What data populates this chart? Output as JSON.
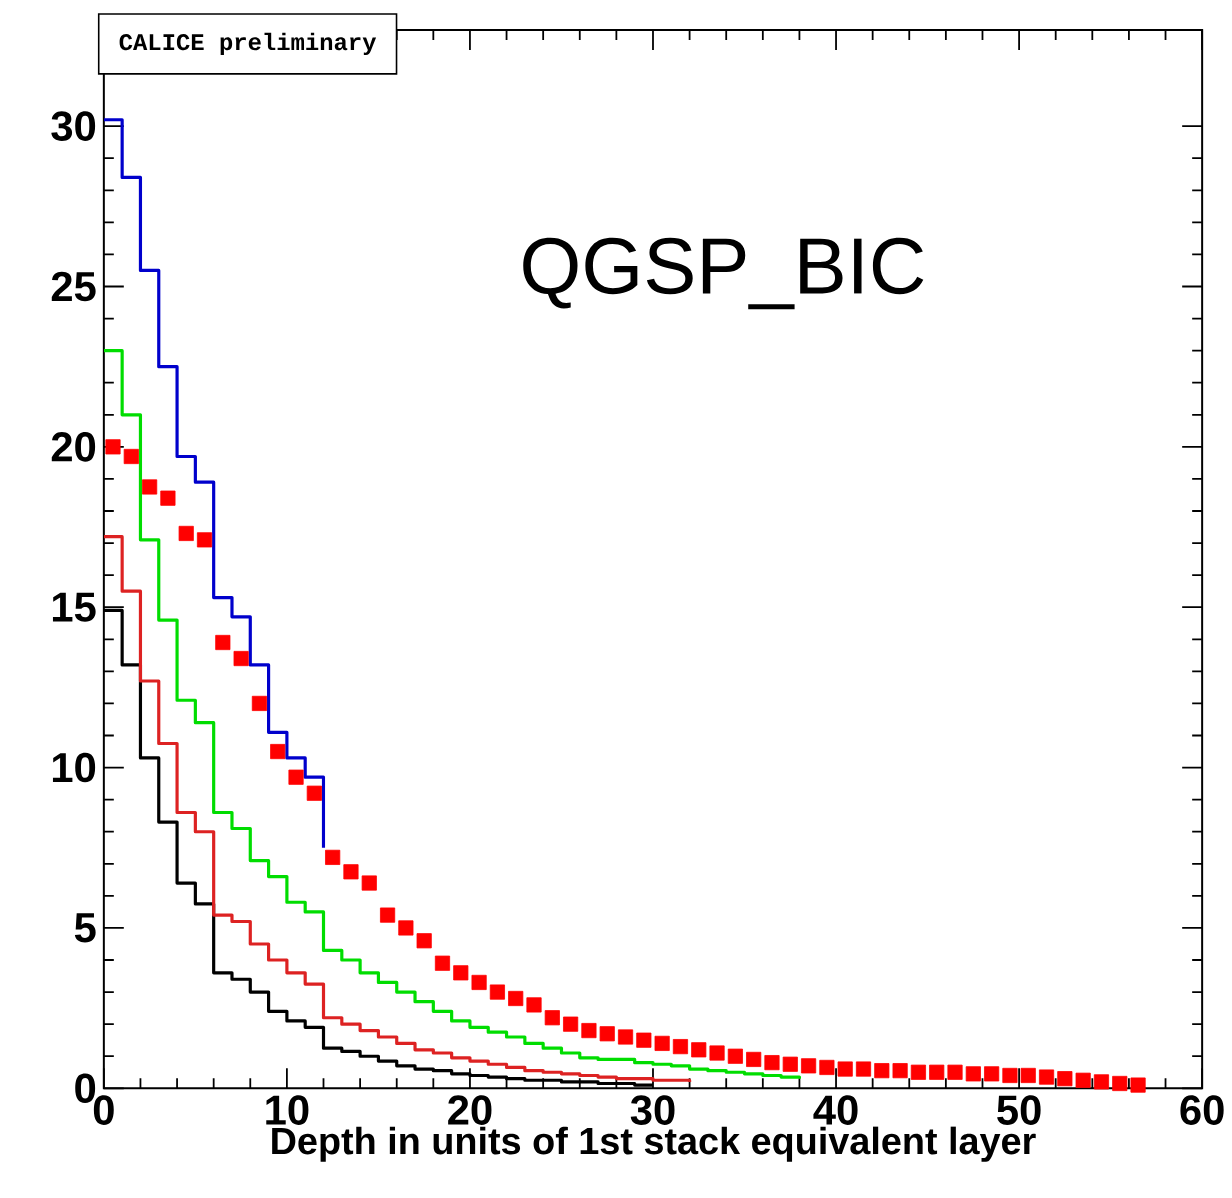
{
  "chart_data": {
    "type": "step",
    "xlabel": "Depth in units of 1st stack equivalent layer",
    "annotations": [
      "CALICE preliminary",
      "QGSP_BIC"
    ],
    "xlim": [
      0,
      60
    ],
    "ylim": [
      0,
      33
    ],
    "xticks": [
      0,
      10,
      20,
      30,
      40,
      50,
      60
    ],
    "yticks": [
      0,
      5,
      10,
      15,
      20,
      25,
      30
    ],
    "grid": false,
    "series": [
      {
        "color": "#000000",
        "x": [
          0,
          1,
          2,
          3,
          4,
          5,
          6,
          7,
          8,
          9,
          10,
          11,
          12,
          13,
          14,
          15,
          16,
          17,
          18,
          19,
          20,
          21,
          22,
          23,
          24,
          25,
          26,
          27,
          28,
          29,
          30
        ],
        "values": [
          14.9,
          13.2,
          10.3,
          8.3,
          6.4,
          5.75,
          3.6,
          3.4,
          3.0,
          2.4,
          2.1,
          1.9,
          1.25,
          1.15,
          1.0,
          0.85,
          0.7,
          0.6,
          0.55,
          0.45,
          0.4,
          0.35,
          0.3,
          0.25,
          0.25,
          0.2,
          0.2,
          0.15,
          0.15,
          0.1,
          0.1
        ]
      },
      {
        "color": "#dd2222",
        "x": [
          0,
          1,
          2,
          3,
          4,
          5,
          6,
          7,
          8,
          9,
          10,
          11,
          12,
          13,
          14,
          15,
          16,
          17,
          18,
          19,
          20,
          21,
          22,
          23,
          24,
          25,
          26,
          27,
          28,
          29,
          30,
          31,
          32
        ],
        "values": [
          17.2,
          15.5,
          12.7,
          10.75,
          8.6,
          8.0,
          5.4,
          5.2,
          4.5,
          4.0,
          3.6,
          3.25,
          2.2,
          2.0,
          1.8,
          1.6,
          1.4,
          1.2,
          1.1,
          0.95,
          0.85,
          0.75,
          0.65,
          0.55,
          0.5,
          0.45,
          0.4,
          0.35,
          0.3,
          0.3,
          0.25,
          0.25,
          0.2
        ]
      },
      {
        "color": "#00dd00",
        "x": [
          0,
          1,
          2,
          3,
          4,
          5,
          6,
          7,
          8,
          9,
          10,
          11,
          12,
          13,
          14,
          15,
          16,
          17,
          18,
          19,
          20,
          21,
          22,
          23,
          24,
          25,
          26,
          27,
          28,
          29,
          30,
          31,
          32,
          33,
          34,
          35,
          36,
          37,
          38
        ],
        "values": [
          23.0,
          21.0,
          17.1,
          14.6,
          12.1,
          11.4,
          8.6,
          8.1,
          7.1,
          6.6,
          5.8,
          5.5,
          4.3,
          4.0,
          3.6,
          3.3,
          3.0,
          2.7,
          2.4,
          2.1,
          1.9,
          1.75,
          1.6,
          1.4,
          1.25,
          1.1,
          0.95,
          0.9,
          0.9,
          0.8,
          0.75,
          0.7,
          0.6,
          0.55,
          0.5,
          0.45,
          0.4,
          0.35,
          0.3
        ]
      },
      {
        "color": "#0000cc",
        "x": [
          0,
          1,
          2,
          3,
          4,
          5,
          6,
          7,
          8,
          9,
          10,
          11,
          12
        ],
        "values": [
          30.2,
          28.4,
          25.5,
          22.5,
          19.7,
          18.9,
          15.3,
          14.7,
          13.2,
          11.1,
          10.3,
          9.7,
          7.5
        ]
      },
      {
        "type": "scatter",
        "marker": "square",
        "color": "#ff0000",
        "x": [
          0.5,
          1.5,
          2.5,
          3.5,
          4.5,
          5.5,
          6.5,
          7.5,
          8.5,
          9.5,
          10.5,
          11.5,
          12.5,
          13.5,
          14.5,
          15.5,
          16.5,
          17.5,
          18.5,
          19.5,
          20.5,
          21.5,
          22.5,
          23.5,
          24.5,
          25.5,
          26.5,
          27.5,
          28.5,
          29.5,
          30.5,
          31.5,
          32.5,
          33.5,
          34.5,
          35.5,
          36.5,
          37.5,
          38.5,
          39.5,
          40.5,
          41.5,
          42.5,
          43.5,
          44.5,
          45.5,
          46.5,
          47.5,
          48.5,
          49.5,
          50.5,
          51.5,
          52.5,
          53.5,
          54.5,
          55.5,
          56.5
        ],
        "values": [
          20.0,
          19.7,
          18.75,
          18.4,
          17.3,
          17.1,
          13.9,
          13.4,
          12.0,
          10.5,
          9.7,
          9.2,
          7.2,
          6.75,
          6.4,
          5.4,
          5.0,
          4.6,
          3.9,
          3.6,
          3.3,
          3.0,
          2.8,
          2.6,
          2.2,
          2.0,
          1.8,
          1.7,
          1.6,
          1.5,
          1.4,
          1.3,
          1.2,
          1.1,
          1.0,
          0.9,
          0.8,
          0.75,
          0.7,
          0.65,
          0.6,
          0.6,
          0.55,
          0.55,
          0.5,
          0.5,
          0.5,
          0.45,
          0.45,
          0.4,
          0.4,
          0.35,
          0.3,
          0.25,
          0.2,
          0.15,
          0.1
        ]
      }
    ]
  }
}
